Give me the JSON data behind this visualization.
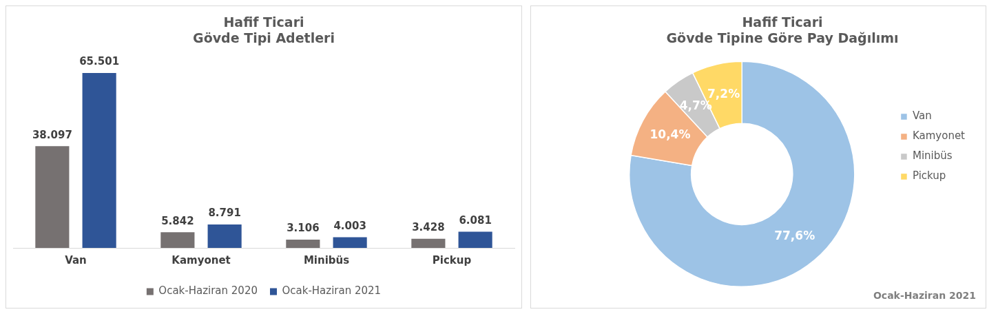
{
  "chart_data": [
    {
      "type": "bar",
      "title": "Hafif Ticari\nGövde Tipi Adetleri",
      "categories": [
        "Van",
        "Kamyonet",
        "Minibüs",
        "Pickup"
      ],
      "legend": "bottom",
      "grid": false,
      "series": [
        {
          "name": "Ocak-Haziran 2020",
          "color": "#767171",
          "values": [
            38097,
            5842,
            3106,
            3428
          ],
          "value_labels": [
            "38.097",
            "5.842",
            "3.106",
            "3.428"
          ]
        },
        {
          "name": "Ocak-Haziran 2021",
          "color": "#2f5597",
          "values": [
            65501,
            8791,
            4003,
            6081
          ],
          "value_labels": [
            "65.501",
            "8.791",
            "4.003",
            "6.081"
          ]
        }
      ]
    },
    {
      "type": "donut",
      "title": "Hafif Ticari\nGövde Tipine Göre Pay Dağılımı",
      "categories": [
        "Van",
        "Kamyonet",
        "Minibüs",
        "Pickup"
      ],
      "values": [
        77.6,
        10.4,
        4.7,
        7.2
      ],
      "value_labels": [
        "77,6%",
        "10,4%",
        "4,7%",
        "7,2%"
      ],
      "colors": [
        "#9dc3e6",
        "#f4b183",
        "#c9c9c9",
        "#ffd966"
      ],
      "legend": "right",
      "annotations": [
        "Ocak-Haziran 2021"
      ]
    }
  ]
}
